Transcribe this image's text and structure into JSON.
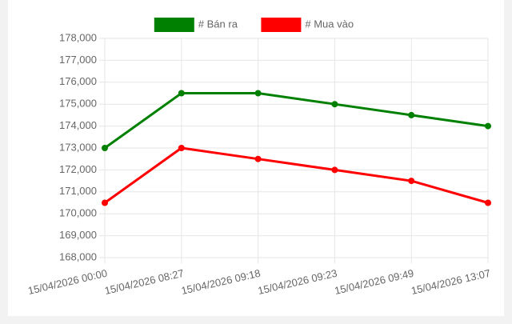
{
  "chart_data": {
    "type": "line",
    "categories": [
      "15/04/2026 00:00",
      "15/04/2026 08:27",
      "15/04/2026 09:18",
      "15/04/2026 09:23",
      "15/04/2026 09:49",
      "15/04/2026 13:07"
    ],
    "series": [
      {
        "name": "# Bán ra",
        "color": "#008000",
        "values": [
          173000,
          175500,
          175500,
          175000,
          174500,
          174000
        ]
      },
      {
        "name": "# Mua vào",
        "color": "#ff0000",
        "values": [
          170500,
          173000,
          172500,
          172000,
          171500,
          170500
        ]
      }
    ],
    "ylim": [
      168000,
      178000
    ],
    "yticks": [
      {
        "value": 168000,
        "label": "168,000"
      },
      {
        "value": 169000,
        "label": "169,000"
      },
      {
        "value": 170000,
        "label": "170,000"
      },
      {
        "value": 171000,
        "label": "171,000"
      },
      {
        "value": 172000,
        "label": "172,000"
      },
      {
        "value": 173000,
        "label": "173,000"
      },
      {
        "value": 174000,
        "label": "174,000"
      },
      {
        "value": 175000,
        "label": "175,000"
      },
      {
        "value": 176000,
        "label": "176,000"
      },
      {
        "value": 177000,
        "label": "177,000"
      },
      {
        "value": 178000,
        "label": "178,000"
      }
    ],
    "grid": true,
    "legend": "top"
  }
}
